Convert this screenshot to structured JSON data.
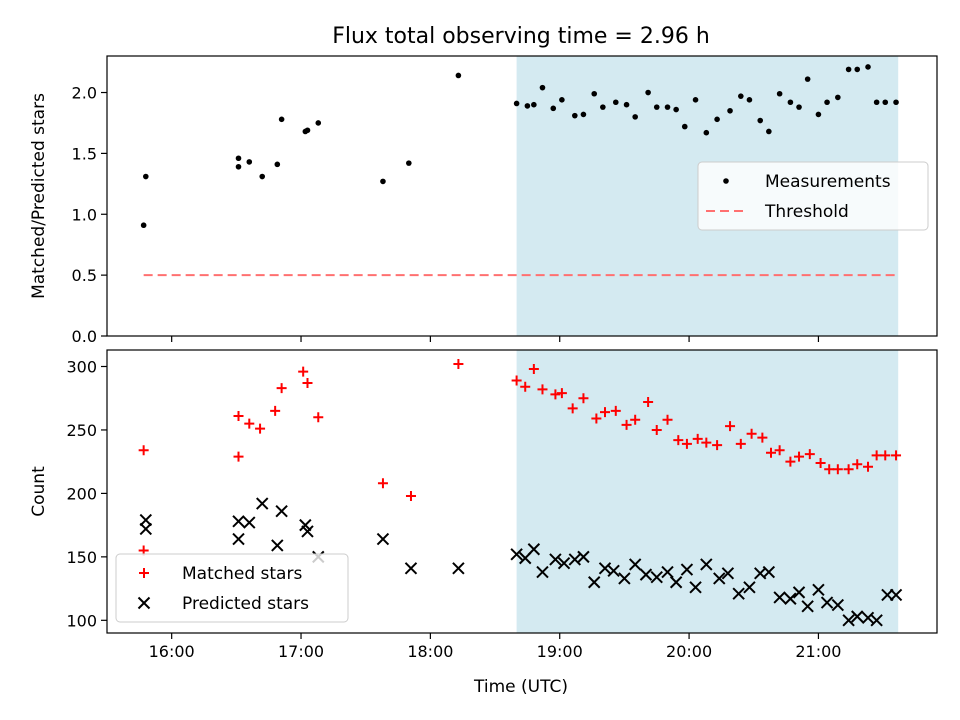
{
  "figure": {
    "title": "Flux total observing time = 2.96 h",
    "xlabel": "Time (UTC)"
  },
  "chart_data": [
    {
      "type": "scatter",
      "panel": "top",
      "ylabel": "Matched/Predicted stars",
      "xlim": [
        "15:30",
        "21:55"
      ],
      "ylim": [
        0,
        2.3
      ],
      "yticks": [
        0.0,
        0.5,
        1.0,
        1.5,
        2.0
      ],
      "ytick_labels": [
        "0.0",
        "0.5",
        "1.0",
        "1.5",
        "2.0"
      ],
      "xticks": [
        "16:00",
        "17:00",
        "18:00",
        "19:00",
        "20:00",
        "21:00"
      ],
      "shaded_region": {
        "x": [
          "18:40",
          "21:37"
        ],
        "color": "#d4eaf1"
      },
      "legend": {
        "position": "center-right",
        "entries": [
          "Measurements",
          "Threshold"
        ]
      },
      "series": [
        {
          "name": "Measurements",
          "marker": "dot",
          "color": "#000000",
          "x": [
            "15:47",
            "15:48",
            "16:31",
            "16:31",
            "16:36",
            "16:42",
            "16:49",
            "16:51",
            "17:02",
            "17:03",
            "17:08",
            "17:38",
            "17:50",
            "18:13",
            "18:40",
            "18:45",
            "18:48",
            "18:52",
            "18:57",
            "19:01",
            "19:07",
            "19:11",
            "19:16",
            "19:20",
            "19:26",
            "19:31",
            "19:35",
            "19:41",
            "19:45",
            "19:50",
            "19:54",
            "19:58",
            "20:03",
            "20:08",
            "20:13",
            "20:19",
            "20:24",
            "20:28",
            "20:33",
            "20:37",
            "20:42",
            "20:47",
            "20:51",
            "20:55",
            "21:00",
            "21:04",
            "21:09",
            "21:14",
            "21:18",
            "21:23",
            "21:27",
            "21:31",
            "21:36"
          ],
          "y": [
            0.91,
            1.31,
            1.46,
            1.39,
            1.43,
            1.31,
            1.41,
            1.78,
            1.68,
            1.69,
            1.75,
            1.27,
            1.42,
            2.14,
            1.91,
            1.89,
            1.9,
            2.04,
            1.87,
            1.94,
            1.81,
            1.82,
            1.99,
            1.88,
            1.92,
            1.9,
            1.8,
            2.0,
            1.88,
            1.88,
            1.86,
            1.72,
            1.94,
            1.67,
            1.78,
            1.85,
            1.97,
            1.94,
            1.77,
            1.68,
            1.99,
            1.92,
            1.88,
            2.11,
            1.82,
            1.92,
            1.96,
            2.19,
            2.19,
            2.21,
            1.92,
            1.92,
            1.92
          ]
        },
        {
          "name": "Threshold",
          "linestyle": "dashed",
          "color": "#ff7070",
          "x": [
            "15:47",
            "21:37"
          ],
          "y": [
            0.5,
            0.5
          ]
        }
      ]
    },
    {
      "type": "scatter",
      "panel": "bottom",
      "ylabel": "Count",
      "xlim": [
        "15:30",
        "21:55"
      ],
      "ylim": [
        90,
        313
      ],
      "yticks": [
        100,
        150,
        200,
        250,
        300
      ],
      "ytick_labels": [
        "100",
        "150",
        "200",
        "250",
        "300"
      ],
      "xticks": [
        "16:00",
        "17:00",
        "18:00",
        "19:00",
        "20:00",
        "21:00"
      ],
      "xtick_labels": [
        "16:00",
        "17:00",
        "18:00",
        "19:00",
        "20:00",
        "21:00"
      ],
      "shaded_region": {
        "x": [
          "18:40",
          "21:37"
        ],
        "color": "#d4eaf1"
      },
      "legend": {
        "position": "lower-left",
        "entries": [
          "Matched stars",
          "Predicted stars"
        ]
      },
      "series": [
        {
          "name": "Matched stars",
          "marker": "plus",
          "color": "#ff0000",
          "x": [
            "15:47",
            "15:47",
            "16:31",
            "16:31",
            "16:36",
            "16:41",
            "16:48",
            "16:51",
            "17:01",
            "17:03",
            "17:08",
            "17:38",
            "17:51",
            "18:13",
            "18:40",
            "18:44",
            "18:48",
            "18:52",
            "18:58",
            "19:01",
            "19:06",
            "19:11",
            "19:17",
            "19:21",
            "19:26",
            "19:31",
            "19:35",
            "19:41",
            "19:45",
            "19:50",
            "19:55",
            "19:59",
            "20:04",
            "20:08",
            "20:13",
            "20:19",
            "20:24",
            "20:29",
            "20:34",
            "20:38",
            "20:42",
            "20:47",
            "20:51",
            "20:56",
            "21:01",
            "21:05",
            "21:09",
            "21:14",
            "21:18",
            "21:23",
            "21:27",
            "21:31",
            "21:36"
          ],
          "y": [
            234,
            155,
            261,
            229,
            255,
            251,
            265,
            283,
            296,
            287,
            260,
            208,
            198,
            302,
            289,
            284,
            298,
            282,
            278,
            279,
            267,
            275,
            259,
            264,
            265,
            254,
            258,
            272,
            250,
            258,
            242,
            239,
            243,
            240,
            238,
            253,
            239,
            247,
            244,
            232,
            234,
            225,
            229,
            231,
            224,
            219,
            219,
            219,
            223,
            221,
            230,
            230,
            230
          ]
        },
        {
          "name": "Predicted stars",
          "marker": "x",
          "color": "#000000",
          "x": [
            "15:48",
            "15:48",
            "16:31",
            "16:31",
            "16:36",
            "16:42",
            "16:49",
            "16:51",
            "17:02",
            "17:03",
            "17:08",
            "17:38",
            "17:51",
            "18:13",
            "18:40",
            "18:44",
            "18:48",
            "18:52",
            "18:58",
            "19:02",
            "19:07",
            "19:11",
            "19:16",
            "19:21",
            "19:25",
            "19:30",
            "19:35",
            "19:40",
            "19:45",
            "19:50",
            "19:54",
            "19:59",
            "20:03",
            "20:08",
            "20:14",
            "20:18",
            "20:23",
            "20:28",
            "20:33",
            "20:37",
            "20:42",
            "20:47",
            "20:51",
            "20:55",
            "21:00",
            "21:04",
            "21:09",
            "21:14",
            "21:18",
            "21:23",
            "21:27",
            "21:32",
            "21:36"
          ],
          "y": [
            179,
            172,
            164,
            178,
            177,
            192,
            159,
            186,
            175,
            170,
            150,
            164,
            141,
            141,
            152,
            149,
            156,
            138,
            148,
            145,
            148,
            150,
            130,
            141,
            139,
            133,
            144,
            136,
            134,
            138,
            130,
            140,
            126,
            144,
            133,
            137,
            121,
            126,
            137,
            138,
            118,
            117,
            122,
            111,
            124,
            114,
            112,
            100,
            103,
            102,
            100,
            120,
            120
          ]
        }
      ]
    }
  ]
}
